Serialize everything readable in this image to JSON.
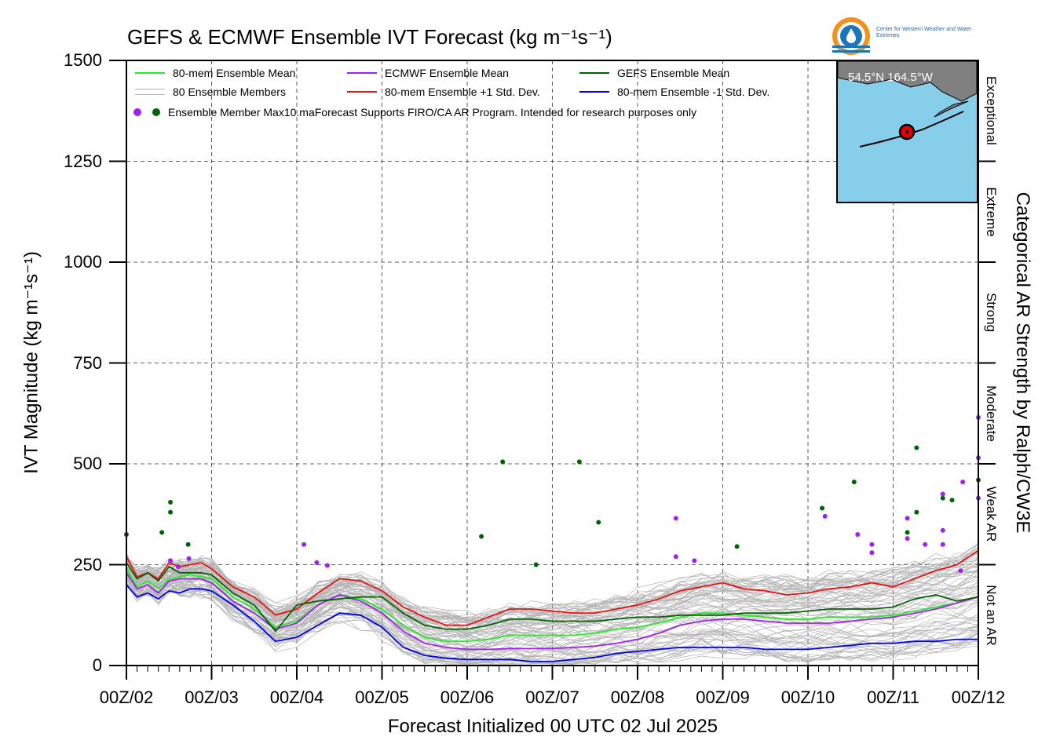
{
  "title": "GEFS & ECMWF Ensemble IVT Forecast (kg m⁻¹s⁻¹)",
  "logo": {
    "text": "Center for Western Weather and Water Extremes",
    "colors": {
      "orange": "#f4911e",
      "blue": "#1b75bb"
    }
  },
  "legend": {
    "mean80": "80-mem Ensemble Mean",
    "members": "80 Ensemble Members",
    "max_dots": "Ensemble Member Max10.maForecast Supports FIRO/CA AR Program. Intended for research purposes only",
    "ecmwf_mean": "ECMWF Ensemble Mean",
    "plus_std": "80-mem Ensemble +1 Std. Dev.",
    "gefs_mean": "GEFS Ensemble Mean",
    "minus_std": "80-mem Ensemble -1 Std. Dev."
  },
  "map": {
    "coord": "54.5°N 164.5°W",
    "colors": {
      "sea": "#87ceeb",
      "land": "#808080",
      "marker": "#e00000"
    }
  },
  "categories": [
    "Exceptional",
    "Extreme",
    "Strong",
    "Moderate",
    "Weak AR",
    "Not an AR"
  ],
  "chart_data": {
    "type": "line",
    "title": "GEFS & ECMWF Ensemble IVT Forecast (kg m⁻¹s⁻¹)",
    "xlabel": "Forecast Initialized 00 UTC 02 Jul 2025",
    "ylabel": "IVT Magnitude (kg m⁻¹s⁻¹)",
    "y2label": "Categorical AR Strength by Ralph/CW3E",
    "ylim": [
      0,
      1500
    ],
    "xlim": [
      0,
      10
    ],
    "yticks": [
      0,
      250,
      500,
      750,
      1000,
      1250,
      1500
    ],
    "xtick_labels": [
      "00Z/02",
      "00Z/03",
      "00Z/04",
      "00Z/05",
      "00Z/06",
      "00Z/07",
      "00Z/08",
      "00Z/09",
      "00Z/10",
      "00Z/11",
      "00Z/12"
    ],
    "category_bounds": [
      0,
      250,
      500,
      750,
      1000,
      1250,
      1500
    ],
    "grid": true,
    "legend_position": "top-left",
    "colors": {
      "mean80": "#22ee22",
      "ecmwf": "#a020f0",
      "gefs": "#006400",
      "plus_std": "#ee1111",
      "minus_std": "#0000ee",
      "members": "#b4b4b4"
    },
    "x": [
      0,
      0.125,
      0.25,
      0.375,
      0.5,
      0.625,
      0.75,
      0.875,
      1,
      1.25,
      1.5,
      1.75,
      2,
      2.25,
      2.5,
      2.75,
      3,
      3.25,
      3.5,
      3.75,
      4,
      4.25,
      4.5,
      4.75,
      5,
      5.25,
      5.5,
      5.75,
      6,
      6.25,
      6.5,
      6.75,
      7,
      7.25,
      7.5,
      7.75,
      8,
      8.25,
      8.5,
      8.75,
      9,
      9.25,
      9.5,
      9.75,
      10
    ],
    "series": [
      {
        "name": "80-mem Ensemble +1 Std. Dev.",
        "key": "plus_std",
        "values": [
          270,
          220,
          230,
          215,
          255,
          245,
          250,
          255,
          240,
          195,
          170,
          125,
          140,
          180,
          215,
          210,
          185,
          145,
          120,
          100,
          100,
          120,
          140,
          140,
          135,
          130,
          130,
          140,
          150,
          165,
          185,
          195,
          205,
          190,
          185,
          175,
          180,
          190,
          195,
          205,
          195,
          215,
          235,
          250,
          285
        ]
      },
      {
        "name": "80-mem Ensemble -1 Std. Dev.",
        "key": "minus_std",
        "values": [
          200,
          170,
          180,
          165,
          185,
          180,
          190,
          190,
          185,
          150,
          110,
          60,
          70,
          100,
          130,
          125,
          95,
          45,
          25,
          18,
          15,
          15,
          15,
          10,
          10,
          15,
          20,
          30,
          35,
          40,
          45,
          45,
          45,
          45,
          40,
          40,
          40,
          45,
          50,
          55,
          55,
          60,
          60,
          65,
          65
        ]
      },
      {
        "name": "80-mem Ensemble Mean",
        "key": "mean80",
        "values": [
          240,
          195,
          210,
          190,
          215,
          220,
          225,
          220,
          215,
          170,
          140,
          95,
          110,
          150,
          175,
          165,
          140,
          100,
          70,
          60,
          60,
          65,
          75,
          75,
          75,
          75,
          80,
          90,
          95,
          105,
          120,
          130,
          130,
          125,
          120,
          115,
          115,
          120,
          120,
          120,
          125,
          135,
          145,
          155,
          170
        ]
      },
      {
        "name": "ECMWF Ensemble Mean",
        "key": "ecmwf",
        "values": [
          230,
          190,
          200,
          180,
          210,
          215,
          215,
          215,
          205,
          160,
          130,
          90,
          105,
          150,
          175,
          160,
          130,
          85,
          55,
          45,
          40,
          40,
          42,
          42,
          42,
          45,
          48,
          55,
          65,
          80,
          100,
          110,
          115,
          115,
          110,
          105,
          105,
          105,
          110,
          115,
          120,
          130,
          140,
          155,
          170
        ]
      },
      {
        "name": "GEFS Ensemble Mean",
        "key": "gefs",
        "values": [
          255,
          215,
          230,
          210,
          245,
          230,
          230,
          230,
          225,
          180,
          150,
          85,
          150,
          160,
          165,
          170,
          170,
          130,
          100,
          90,
          90,
          100,
          115,
          115,
          110,
          110,
          110,
          115,
          120,
          120,
          125,
          125,
          125,
          130,
          130,
          130,
          135,
          140,
          140,
          140,
          145,
          165,
          175,
          160,
          170
        ]
      }
    ],
    "member_spread": {
      "base": [
        235,
        200,
        210,
        195,
        215,
        215,
        220,
        220,
        210,
        165,
        135,
        95,
        110,
        145,
        170,
        160,
        135,
        95,
        70,
        60,
        55,
        60,
        70,
        70,
        70,
        72,
        75,
        85,
        92,
        102,
        115,
        125,
        125,
        120,
        118,
        112,
        112,
        118,
        120,
        122,
        125,
        135,
        145,
        155,
        170
      ],
      "count": 80
    },
    "member_max_points": {
      "ecmwf": [
        [
          0.62,
          260
        ],
        [
          0.73,
          245
        ],
        [
          0.88,
          265
        ],
        [
          2.5,
          300
        ],
        [
          2.68,
          255
        ],
        [
          2.83,
          248
        ],
        [
          7.74,
          365
        ],
        [
          7.74,
          270
        ],
        [
          8.0,
          260
        ],
        [
          9.84,
          370
        ],
        [
          10.3,
          325
        ],
        [
          10.5,
          300
        ],
        [
          10.5,
          280
        ],
        [
          11.0,
          365
        ],
        [
          11.0,
          315
        ],
        [
          11.25,
          300
        ],
        [
          11.5,
          425
        ],
        [
          11.5,
          335
        ],
        [
          11.5,
          300
        ],
        [
          11.75,
          235
        ],
        [
          11.78,
          455
        ],
        [
          12.0,
          615
        ],
        [
          12.0,
          515
        ],
        [
          12.0,
          415
        ]
      ],
      "gefs": [
        [
          0,
          325
        ],
        [
          0.5,
          330
        ],
        [
          0.62,
          405
        ],
        [
          0.62,
          380
        ],
        [
          0.87,
          300
        ],
        [
          5.0,
          320
        ],
        [
          5.3,
          505
        ],
        [
          5.77,
          250
        ],
        [
          6.38,
          505
        ],
        [
          6.65,
          355
        ],
        [
          8.6,
          295
        ],
        [
          9.8,
          390
        ],
        [
          10.25,
          455
        ],
        [
          11.0,
          330
        ],
        [
          11.13,
          540
        ],
        [
          11.13,
          380
        ],
        [
          11.5,
          415
        ],
        [
          11.63,
          410
        ],
        [
          12.0,
          460
        ]
      ]
    }
  }
}
